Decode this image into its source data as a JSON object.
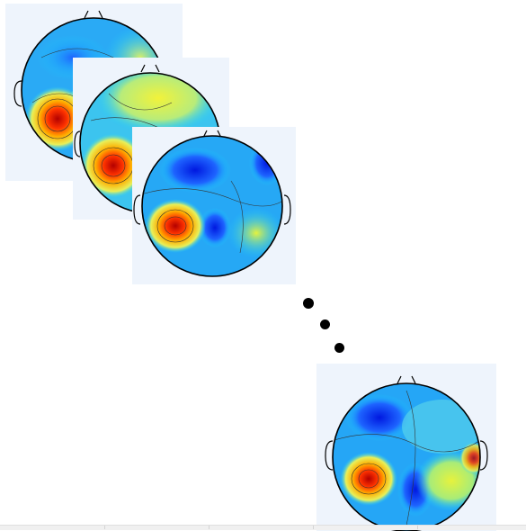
{
  "figure": {
    "description_items": [],
    "ellipsis": [
      "•",
      "•",
      "•"
    ]
  },
  "colors": {
    "cold_low": "#0000ff",
    "cold": "#1e90ff",
    "cyan": "#19d2ff",
    "mid": "#6fe0d6",
    "warm": "#e6f23d",
    "hot": "#ff6a00",
    "peak": "#b30000",
    "panel_bg": "#eef4fc"
  },
  "maps": [
    {
      "id": "map-1"
    },
    {
      "id": "map-2"
    },
    {
      "id": "map-3"
    },
    {
      "id": "map-4"
    }
  ]
}
